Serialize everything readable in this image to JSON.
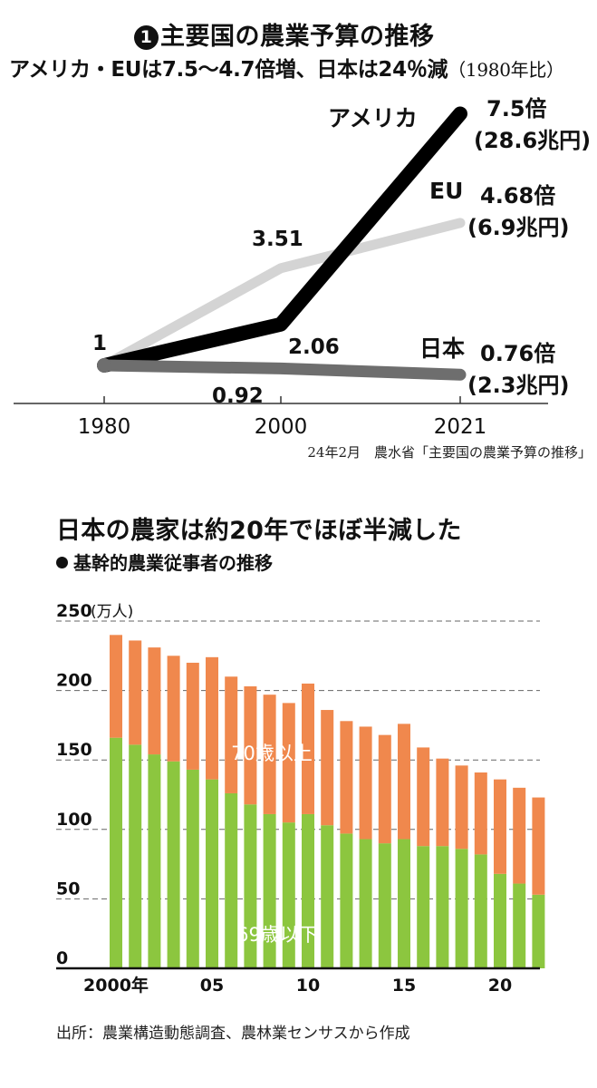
{
  "top": {
    "title_num": "1",
    "title": "主要国の農業予算の推移",
    "subtitle": "アメリカ・EUは7.5〜4.7倍増、日本は24％減",
    "subtitle_note": "（1980年比）",
    "source": "24年2月　農水省「主要国の農業予算の推移」"
  },
  "bottom": {
    "title": "日本の農家は約20年でほぼ半減した",
    "subtitle": "基幹的農業従事者の推移",
    "source": "出所：農業構造動態調査、農林業センサスから作成"
  },
  "chart_data": [
    {
      "type": "line",
      "title": "主要国の農業予算の推移",
      "x": [
        "1980",
        "2000",
        "2021"
      ],
      "series": [
        {
          "name": "アメリカ",
          "values": [
            1,
            2.06,
            7.5
          ],
          "color": "#000000",
          "end_label": "7.5倍",
          "end_sub": "(28.6兆円)"
        },
        {
          "name": "EU",
          "values": [
            1,
            3.51,
            4.68
          ],
          "color": "#d4d4d4",
          "end_label": "4.68倍",
          "end_sub": "(6.9兆円)"
        },
        {
          "name": "日本",
          "values": [
            1,
            0.92,
            0.76
          ],
          "color": "#6e6e6e",
          "end_label": "0.76倍",
          "end_sub": "(2.3兆円)"
        }
      ],
      "annotations": {
        "start": "1",
        "eu_2000": "3.51",
        "us_2000": "2.06",
        "jp_2000": "0.92"
      }
    },
    {
      "type": "bar",
      "stacked": true,
      "title": "基幹的農業従事者の推移",
      "unit": "(万人)",
      "ylim": [
        0,
        250
      ],
      "yticks": [
        "0",
        "50",
        "100",
        "150",
        "200",
        "250"
      ],
      "x_tick_labels": [
        "2000年",
        "05",
        "10",
        "15",
        "20"
      ],
      "categories": [
        "2000",
        "2001",
        "2002",
        "2003",
        "2004",
        "2005",
        "2006",
        "2007",
        "2008",
        "2009",
        "2010",
        "2011",
        "2012",
        "2013",
        "2014",
        "2015",
        "2016",
        "2017",
        "2018",
        "2019",
        "2020",
        "2021",
        "2022"
      ],
      "series": [
        {
          "name": "69歳以下",
          "color": "#8cc63f",
          "values": [
            166,
            161,
            154,
            149,
            143,
            136,
            126,
            118,
            111,
            105,
            111,
            103,
            97,
            93,
            90,
            93,
            88,
            88,
            86,
            82,
            68,
            61,
            53
          ]
        },
        {
          "name": "70歳以上",
          "color": "#f0884d",
          "values": [
            74,
            75,
            77,
            76,
            77,
            88,
            84,
            85,
            86,
            86,
            94,
            83,
            81,
            81,
            78,
            83,
            71,
            63,
            60,
            59,
            68,
            69,
            70
          ]
        }
      ]
    }
  ]
}
